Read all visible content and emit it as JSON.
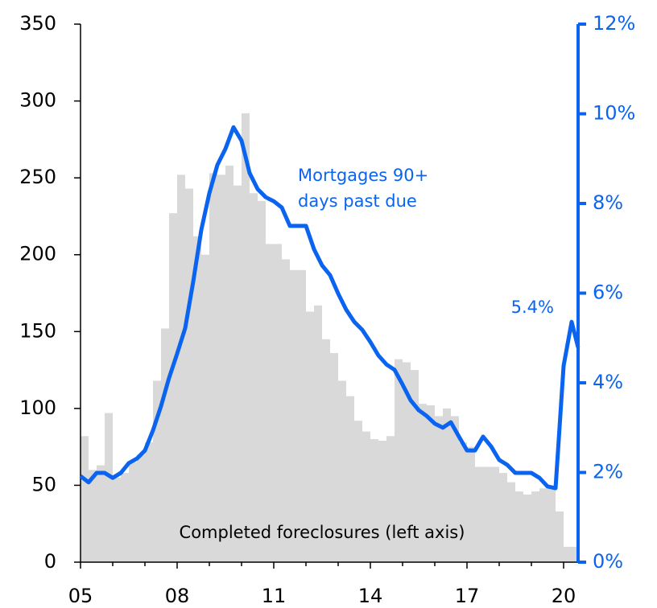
{
  "chart_data": {
    "type": "bar-line",
    "xlim": [
      2005,
      2020.45
    ],
    "xticks": [
      {
        "value": 2005,
        "label": "05"
      },
      {
        "value": 2008,
        "label": "08"
      },
      {
        "value": 2011,
        "label": "11"
      },
      {
        "value": 2014,
        "label": "14"
      },
      {
        "value": 2017,
        "label": "17"
      },
      {
        "value": 2020,
        "label": "20"
      }
    ],
    "xminorticks": [
      2006,
      2007,
      2009,
      2010,
      2012,
      2013,
      2015,
      2016,
      2018,
      2019
    ],
    "ylim": [
      0,
      350
    ],
    "yticks": [
      0,
      50,
      100,
      150,
      200,
      250,
      300,
      350
    ],
    "y2lim": [
      0,
      12
    ],
    "y2ticks": [
      {
        "value": 0,
        "label": "0%"
      },
      {
        "value": 2,
        "label": "2%"
      },
      {
        "value": 4,
        "label": "4%"
      },
      {
        "value": 6,
        "label": "6%"
      },
      {
        "value": 8,
        "label": "8%"
      },
      {
        "value": 10,
        "label": "10%"
      },
      {
        "value": 12,
        "label": "12%"
      }
    ],
    "annotations": [
      "Mortgages 90+",
      "days past due",
      "5.4%",
      "Completed foreclosures (left axis)"
    ],
    "series": [
      {
        "type": "bar",
        "color": "#d9d9d9",
        "x": [
          2005,
          2005.25,
          2005.5,
          2005.75,
          2006,
          2006.25,
          2006.5,
          2006.75,
          2007,
          2007.25,
          2007.5,
          2007.75,
          2008,
          2008.25,
          2008.5,
          2008.75,
          2009,
          2009.25,
          2009.5,
          2009.75,
          2010,
          2010.25,
          2010.5,
          2010.75,
          2011,
          2011.25,
          2011.5,
          2011.75,
          2012,
          2012.25,
          2012.5,
          2012.75,
          2013,
          2013.25,
          2013.5,
          2013.75,
          2014,
          2014.25,
          2014.5,
          2014.75,
          2015,
          2015.25,
          2015.5,
          2015.75,
          2016,
          2016.25,
          2016.5,
          2016.75,
          2017,
          2017.25,
          2017.5,
          2017.75,
          2018,
          2018.25,
          2018.5,
          2018.75,
          2019,
          2019.25,
          2019.5,
          2019.75,
          2020,
          2020.25
        ],
        "values": [
          82,
          60,
          63,
          97,
          55,
          58,
          65,
          70,
          78,
          118,
          152,
          227,
          252,
          243,
          212,
          200,
          253,
          252,
          258,
          245,
          292,
          240,
          235,
          207,
          207,
          197,
          190,
          190,
          163,
          167,
          145,
          136,
          118,
          108,
          92,
          85,
          80,
          79,
          82,
          132,
          130,
          125,
          103,
          102,
          95,
          100,
          95,
          78,
          75,
          62,
          62,
          62,
          58,
          52,
          46,
          44,
          46,
          48,
          48,
          33,
          10,
          10
        ]
      },
      {
        "type": "line",
        "axis": "y2",
        "color": "#0a64f0",
        "x": [
          2005,
          2005.25,
          2005.5,
          2005.75,
          2006,
          2006.25,
          2006.5,
          2006.75,
          2007,
          2007.25,
          2007.5,
          2007.75,
          2008,
          2008.25,
          2008.5,
          2008.75,
          2009,
          2009.25,
          2009.5,
          2009.75,
          2010,
          2010.25,
          2010.5,
          2010.75,
          2011,
          2011.25,
          2011.5,
          2011.75,
          2012,
          2012.25,
          2012.5,
          2012.75,
          2013,
          2013.25,
          2013.5,
          2013.75,
          2014,
          2014.25,
          2014.5,
          2014.75,
          2015,
          2015.25,
          2015.5,
          2015.75,
          2016,
          2016.25,
          2016.5,
          2016.75,
          2017,
          2017.25,
          2017.5,
          2017.75,
          2018,
          2018.25,
          2018.5,
          2018.75,
          2019,
          2019.25,
          2019.5,
          2019.75,
          2020,
          2020.25,
          2020.45
        ],
        "values": [
          1.92,
          1.78,
          1.99,
          1.99,
          1.88,
          1.99,
          2.21,
          2.31,
          2.49,
          2.94,
          3.48,
          4.11,
          4.65,
          5.22,
          6.26,
          7.41,
          8.23,
          8.86,
          9.22,
          9.7,
          9.4,
          8.68,
          8.32,
          8.14,
          8.05,
          7.91,
          7.5,
          7.5,
          7.5,
          6.98,
          6.62,
          6.4,
          5.99,
          5.63,
          5.36,
          5.18,
          4.91,
          4.61,
          4.41,
          4.29,
          3.96,
          3.61,
          3.39,
          3.26,
          3.09,
          3.0,
          3.12,
          2.8,
          2.49,
          2.49,
          2.8,
          2.58,
          2.28,
          2.17,
          1.99,
          1.99,
          1.99,
          1.88,
          1.69,
          1.65,
          4.38,
          5.36,
          4.79
        ]
      }
    ]
  }
}
